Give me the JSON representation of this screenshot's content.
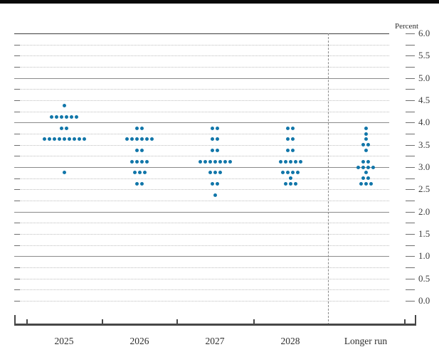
{
  "chart": {
    "dot_color": "#1176a9",
    "top_rule_color": "#0a0a0a",
    "solid_gridline_color": "#8a8a8a",
    "dotted_gridline_color": "#bdbdbd",
    "axis_color": "#474747"
  },
  "chart_data": {
    "type": "scatter",
    "title": "",
    "ylabel": "Percent",
    "xlabel": "",
    "ylim": [
      0.0,
      6.0
    ],
    "ytick_step": 0.25,
    "ytick_label_step": 0.5,
    "ytick_labels": [
      "0.0",
      "0.5",
      "1.0",
      "1.5",
      "2.0",
      "2.5",
      "3.0",
      "3.5",
      "4.0",
      "4.5",
      "5.0",
      "5.5",
      "6.0"
    ],
    "grid": "solid lines at integer percents, dotted lines at quarter percents",
    "legend_position": "none",
    "categories": [
      "2025",
      "2026",
      "2027",
      "2028",
      "Longer run"
    ],
    "series": [
      {
        "category": "2025",
        "dots": [
          {
            "value": 4.375,
            "count": 1
          },
          {
            "value": 4.125,
            "count": 6
          },
          {
            "value": 3.875,
            "count": 2
          },
          {
            "value": 3.625,
            "count": 9
          },
          {
            "value": 2.875,
            "count": 1
          }
        ]
      },
      {
        "category": "2026",
        "dots": [
          {
            "value": 3.875,
            "count": 2
          },
          {
            "value": 3.625,
            "count": 6
          },
          {
            "value": 3.375,
            "count": 2
          },
          {
            "value": 3.125,
            "count": 4
          },
          {
            "value": 2.875,
            "count": 3
          },
          {
            "value": 2.625,
            "count": 2
          }
        ]
      },
      {
        "category": "2027",
        "dots": [
          {
            "value": 3.875,
            "count": 2
          },
          {
            "value": 3.625,
            "count": 2
          },
          {
            "value": 3.375,
            "count": 2
          },
          {
            "value": 3.125,
            "count": 7
          },
          {
            "value": 2.875,
            "count": 3
          },
          {
            "value": 2.625,
            "count": 2
          },
          {
            "value": 2.375,
            "count": 1
          }
        ]
      },
      {
        "category": "2028",
        "dots": [
          {
            "value": 3.875,
            "count": 2
          },
          {
            "value": 3.625,
            "count": 2
          },
          {
            "value": 3.375,
            "count": 2
          },
          {
            "value": 3.125,
            "count": 5
          },
          {
            "value": 2.875,
            "count": 4
          },
          {
            "value": 2.75,
            "count": 1
          },
          {
            "value": 2.625,
            "count": 3
          }
        ]
      },
      {
        "category": "Longer run",
        "dots": [
          {
            "value": 3.875,
            "count": 1
          },
          {
            "value": 3.75,
            "count": 1
          },
          {
            "value": 3.625,
            "count": 1
          },
          {
            "value": 3.5,
            "count": 2
          },
          {
            "value": 3.375,
            "count": 1
          },
          {
            "value": 3.125,
            "count": 2
          },
          {
            "value": 3.0,
            "count": 4
          },
          {
            "value": 2.875,
            "count": 1
          },
          {
            "value": 2.75,
            "count": 2
          },
          {
            "value": 2.625,
            "count": 3
          }
        ]
      }
    ]
  }
}
